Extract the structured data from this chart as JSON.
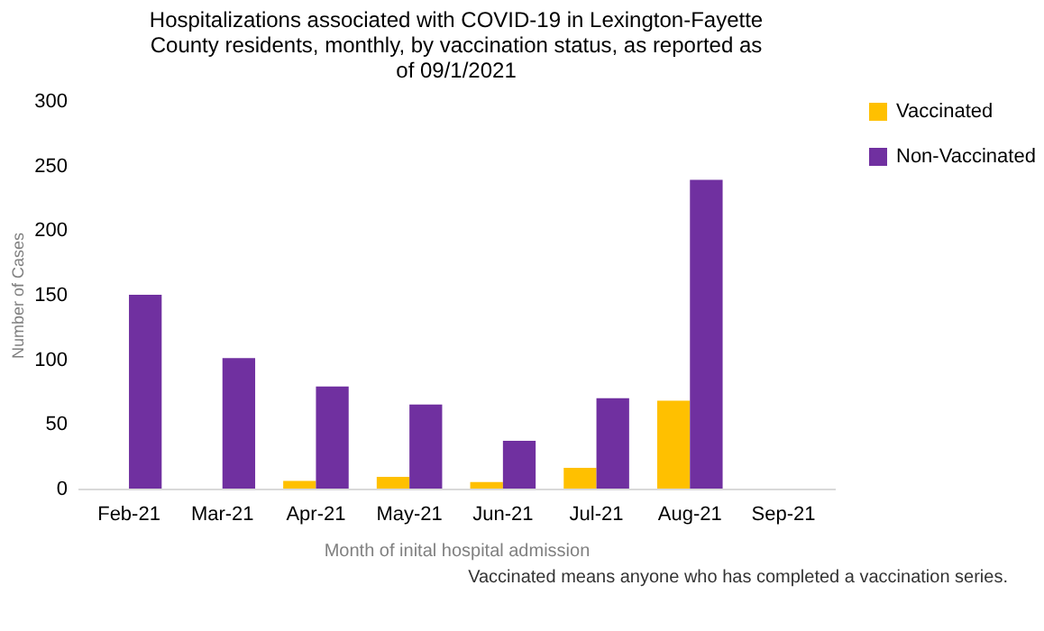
{
  "chart_data": {
    "type": "bar",
    "title": "Hospitalizations associated with COVID-19 in Lexington-Fayette County residents, monthly, by vaccination status, as reported as of  09/1/2021",
    "xlabel": "Month of inital hospital admission",
    "ylabel": "Number of Cases",
    "categories": [
      "Feb-21",
      "Mar-21",
      "Apr-21",
      "May-21",
      "Jun-21",
      "Jul-21",
      "Aug-21",
      "Sep-21"
    ],
    "series": [
      {
        "name": "Vaccinated",
        "color": "#ffc000",
        "values": [
          0,
          0,
          6,
          9,
          5,
          16,
          68,
          0
        ]
      },
      {
        "name": "Non-Vaccinated",
        "color": "#7030a0",
        "values": [
          150,
          101,
          79,
          65,
          37,
          70,
          239,
          0
        ]
      }
    ],
    "ylim": [
      0,
      300
    ],
    "yticks": [
      0,
      50,
      100,
      150,
      200,
      250,
      300
    ],
    "grid": false,
    "legend": "right",
    "annotations": [
      "Vaccinated means anyone who has completed a vaccination series."
    ]
  }
}
